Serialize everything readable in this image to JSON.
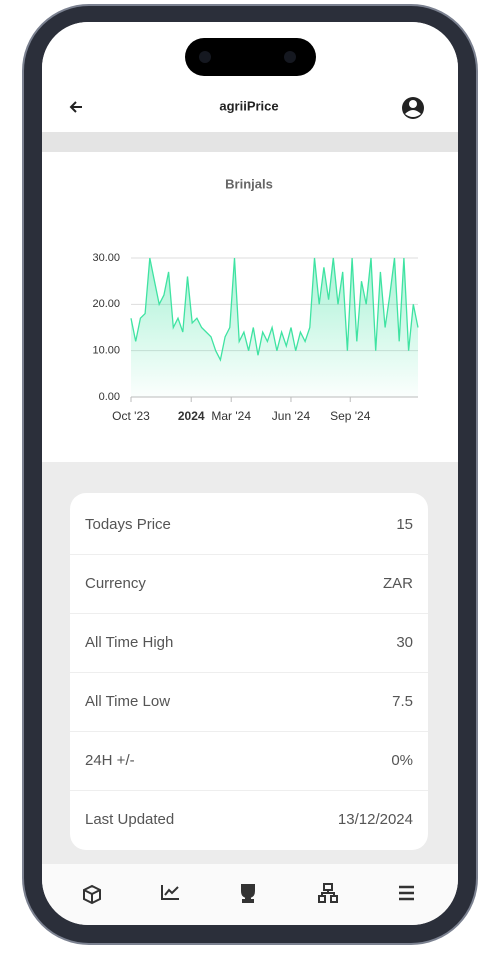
{
  "app": {
    "title": "agriiPrice"
  },
  "chart_data": {
    "type": "area",
    "title": "Brinjals",
    "color": "#3fe3a2",
    "x": [
      0,
      1,
      2,
      3,
      4,
      5,
      6,
      7,
      8,
      9,
      10,
      11,
      12,
      13,
      14,
      15,
      16,
      17,
      18,
      19,
      20,
      21,
      22,
      23,
      24,
      25,
      26,
      27,
      28,
      29,
      30,
      31,
      32,
      33,
      34,
      35,
      36,
      37,
      38,
      39,
      40,
      41,
      42,
      43,
      44,
      45,
      46,
      47,
      48,
      49,
      50,
      51,
      52,
      53,
      54,
      55,
      56,
      57,
      58,
      59,
      60,
      61
    ],
    "values": [
      17,
      12,
      17,
      18,
      30,
      25,
      20,
      22,
      27,
      15,
      17,
      14,
      26,
      16,
      17,
      15,
      14,
      13,
      10,
      8,
      13,
      15,
      30,
      12,
      14,
      10,
      15,
      9,
      14,
      12,
      15,
      10,
      14,
      11,
      15,
      10,
      14,
      12,
      15,
      30,
      20,
      28,
      21,
      30,
      20,
      27,
      10,
      30,
      12,
      25,
      20,
      30,
      10,
      27,
      15,
      22,
      30,
      12,
      30,
      10,
      20,
      15
    ],
    "xlim": [
      0,
      61
    ],
    "xticks": [
      {
        "value": 0,
        "label": "Oct '23"
      },
      {
        "value": 12.8,
        "label": "2024"
      },
      {
        "value": 21.3,
        "label": "Mar '24"
      },
      {
        "value": 34,
        "label": "Jun '24"
      },
      {
        "value": 46.6,
        "label": "Sep '24"
      }
    ],
    "ylim": [
      0,
      30
    ],
    "yticks": [
      {
        "value": 0,
        "label": "0.00"
      },
      {
        "value": 10,
        "label": "10.00"
      },
      {
        "value": 20,
        "label": "20.00"
      },
      {
        "value": 30,
        "label": "30.00"
      }
    ],
    "grid": true
  },
  "stats": {
    "rows": [
      [
        "Todays Price",
        "15"
      ],
      [
        "Currency",
        "ZAR"
      ],
      [
        "All Time High",
        "30"
      ],
      [
        "All Time Low",
        "7.5"
      ],
      [
        "24H +/-",
        "0%"
      ],
      [
        "Last Updated",
        "13/12/2024"
      ]
    ]
  }
}
